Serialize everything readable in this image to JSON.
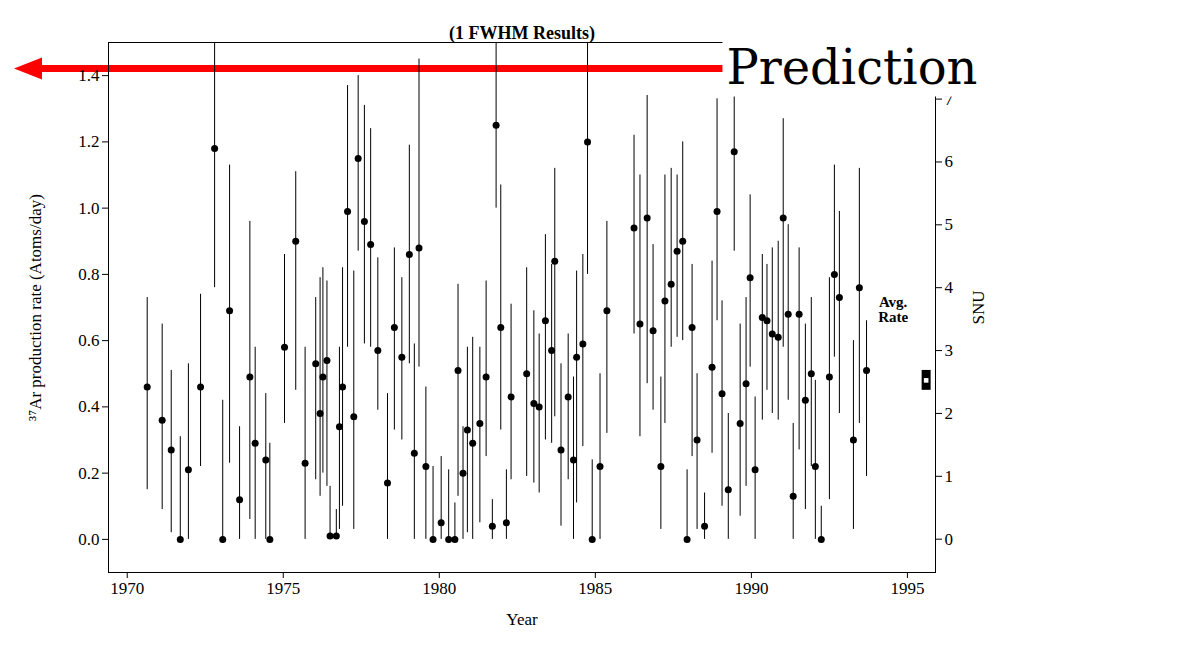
{
  "chart_data": {
    "type": "scatter",
    "title": "(1 FWHM Results)",
    "x_label": "Year",
    "y_label": "³⁷Ar production rate (Atoms/day)",
    "y2_label": "SNU",
    "color": "#000000",
    "marker": "circle",
    "xlim": [
      1969.4,
      1995.9
    ],
    "xticks": [
      1970,
      1975,
      1980,
      1985,
      1990,
      1995
    ],
    "ylim": [
      -0.1,
      1.5
    ],
    "yticks": [
      {
        "value": 0,
        "label": "0.0"
      },
      {
        "value": 0.2,
        "label": "0.2"
      },
      {
        "value": 0.4,
        "label": "0.4"
      },
      {
        "value": 0.6,
        "label": "0.6"
      },
      {
        "value": 0.8,
        "label": "0.8"
      },
      {
        "value": 1.0,
        "label": "1.0"
      },
      {
        "value": 1.2,
        "label": "1.2"
      },
      {
        "value": 1.4,
        "label": "1.4"
      }
    ],
    "y2lim": [
      -0.53,
      7.9
    ],
    "y2ticks": [
      0,
      1,
      2,
      3,
      4,
      5,
      6,
      7
    ],
    "x": [
      1970.64,
      1971.12,
      1971.41,
      1971.7,
      1971.96,
      1972.35,
      1972.8,
      1973.06,
      1973.28,
      1973.6,
      1973.93,
      1974.1,
      1974.44,
      1974.57,
      1975.04,
      1975.4,
      1975.7,
      1976.04,
      1976.18,
      1976.27,
      1976.4,
      1976.5,
      1976.7,
      1976.8,
      1976.9,
      1977.06,
      1977.26,
      1977.4,
      1977.6,
      1977.8,
      1978.03,
      1978.34,
      1978.56,
      1978.8,
      1979.04,
      1979.2,
      1979.35,
      1979.57,
      1979.8,
      1980.06,
      1980.3,
      1980.5,
      1980.6,
      1980.76,
      1980.9,
      1981.07,
      1981.3,
      1981.5,
      1981.7,
      1981.82,
      1981.97,
      1982.15,
      1982.3,
      1982.8,
      1983.03,
      1983.2,
      1983.4,
      1983.6,
      1983.7,
      1983.9,
      1984.13,
      1984.3,
      1984.4,
      1984.6,
      1984.75,
      1984.9,
      1985.15,
      1985.37,
      1986.24,
      1986.43,
      1986.66,
      1986.85,
      1987.1,
      1987.23,
      1987.43,
      1987.62,
      1987.8,
      1987.94,
      1988.1,
      1988.26,
      1988.5,
      1988.74,
      1988.9,
      1989.06,
      1989.26,
      1989.45,
      1989.64,
      1989.83,
      1989.96,
      1990.12,
      1990.35,
      1990.5,
      1990.67,
      1990.86,
      1991.02,
      1991.18,
      1991.34,
      1991.53,
      1991.73,
      1991.92,
      1992.05,
      1992.24,
      1992.5,
      1992.66,
      1992.82,
      1993.27,
      1993.46,
      1993.69
    ],
    "values": [
      0.46,
      0.36,
      0.27,
      0.0,
      0.21,
      0.46,
      1.18,
      0.0,
      0.69,
      0.12,
      0.49,
      0.29,
      0.24,
      0.0,
      0.58,
      0.9,
      0.23,
      0.53,
      0.38,
      0.49,
      0.54,
      0.01,
      0.01,
      0.34,
      0.46,
      0.99,
      0.37,
      1.15,
      0.96,
      0.89,
      0.57,
      0.17,
      0.64,
      0.55,
      0.86,
      0.26,
      0.88,
      0.22,
      0.0,
      0.05,
      0.0,
      0.0,
      0.51,
      0.2,
      0.33,
      0.29,
      0.35,
      0.49,
      0.04,
      1.25,
      0.64,
      0.05,
      0.43,
      0.5,
      0.41,
      0.4,
      0.66,
      0.57,
      0.84,
      0.27,
      0.43,
      0.24,
      0.55,
      0.59,
      1.2,
      0.0,
      0.22,
      0.69,
      0.94,
      0.65,
      0.97,
      0.63,
      0.22,
      0.72,
      0.77,
      0.87,
      0.9,
      0.0,
      0.64,
      0.3,
      0.04,
      0.52,
      0.99,
      0.44,
      0.15,
      1.17,
      0.35,
      0.47,
      0.79,
      0.21,
      0.67,
      0.66,
      0.62,
      0.61,
      0.97,
      0.68,
      0.13,
      0.68,
      0.42,
      0.5,
      0.22,
      0.0,
      0.49,
      0.8,
      0.73,
      0.3,
      0.76,
      0.51
    ],
    "lower": [
      0.15,
      0.09,
      0.02,
      0,
      0,
      0.22,
      0.76,
      0,
      0.23,
      0,
      0.06,
      0,
      0,
      0,
      0.35,
      0.45,
      0,
      0.18,
      0.13,
      0.2,
      0.16,
      0,
      0,
      0.03,
      0.1,
      0.58,
      0.03,
      0.87,
      0.59,
      0.58,
      0.39,
      0,
      0.33,
      0.3,
      0.53,
      0,
      0.52,
      0,
      0,
      0,
      0,
      0,
      0.13,
      0,
      0.02,
      0,
      0.05,
      0.25,
      0,
      1.0,
      0.33,
      0,
      0.18,
      0.19,
      0.17,
      0.14,
      0.3,
      0.29,
      0.37,
      0.04,
      0.18,
      0,
      0.11,
      0.28,
      0.8,
      0,
      0,
      0.32,
      0.62,
      0.31,
      0.47,
      0.39,
      0.03,
      0.35,
      0.58,
      0.61,
      0.6,
      0,
      0.25,
      0.03,
      0,
      0.26,
      0.66,
      0.1,
      0,
      0.87,
      0.07,
      0.16,
      0.52,
      0,
      0.36,
      0.45,
      0.38,
      0.36,
      0.58,
      0.42,
      0,
      0.27,
      0.09,
      0.22,
      0,
      0,
      0.12,
      0.55,
      0.38,
      0.03,
      0.35,
      0.19
    ],
    "upper": [
      0.73,
      0.65,
      0.51,
      0.31,
      0.53,
      0.74,
      1.5,
      0.42,
      1.13,
      0.34,
      0.96,
      0.58,
      0.44,
      0.29,
      0.86,
      1.11,
      0.58,
      0.73,
      0.79,
      0.82,
      0.78,
      0.16,
      0.09,
      0.58,
      0.82,
      1.37,
      0.81,
      1.4,
      1.31,
      1.24,
      0.85,
      0.44,
      0.88,
      0.79,
      1.19,
      0.59,
      1.45,
      0.46,
      0.22,
      0.25,
      0.21,
      0.11,
      0.77,
      0.34,
      0.58,
      0.61,
      0.58,
      0.78,
      0.12,
      1.5,
      1.07,
      0.21,
      0.71,
      0.82,
      0.69,
      0.62,
      0.92,
      0.83,
      1.12,
      0.53,
      0.62,
      0.49,
      0.81,
      0.86,
      1.5,
      0.24,
      0.5,
      0.96,
      1.22,
      1.1,
      1.34,
      0.89,
      0.49,
      1.1,
      1.12,
      1.1,
      1.2,
      0.21,
      0.83,
      0.5,
      0.14,
      0.84,
      1.33,
      0.72,
      0.38,
      1.5,
      0.65,
      0.73,
      1.04,
      0.43,
      0.86,
      0.83,
      0.88,
      0.9,
      1.27,
      0.95,
      0.35,
      0.88,
      0.65,
      0.73,
      0.48,
      0.1,
      0.79,
      1.13,
      0.99,
      0.6,
      1.12,
      0.66
    ],
    "average": {
      "label": "Avg. Rate",
      "x": 1995.6,
      "value": 0.48,
      "low": 0.45,
      "high": 0.51
    },
    "prediction": {
      "label": "Prediction",
      "value": 1.42,
      "color": "#ff0000"
    }
  }
}
